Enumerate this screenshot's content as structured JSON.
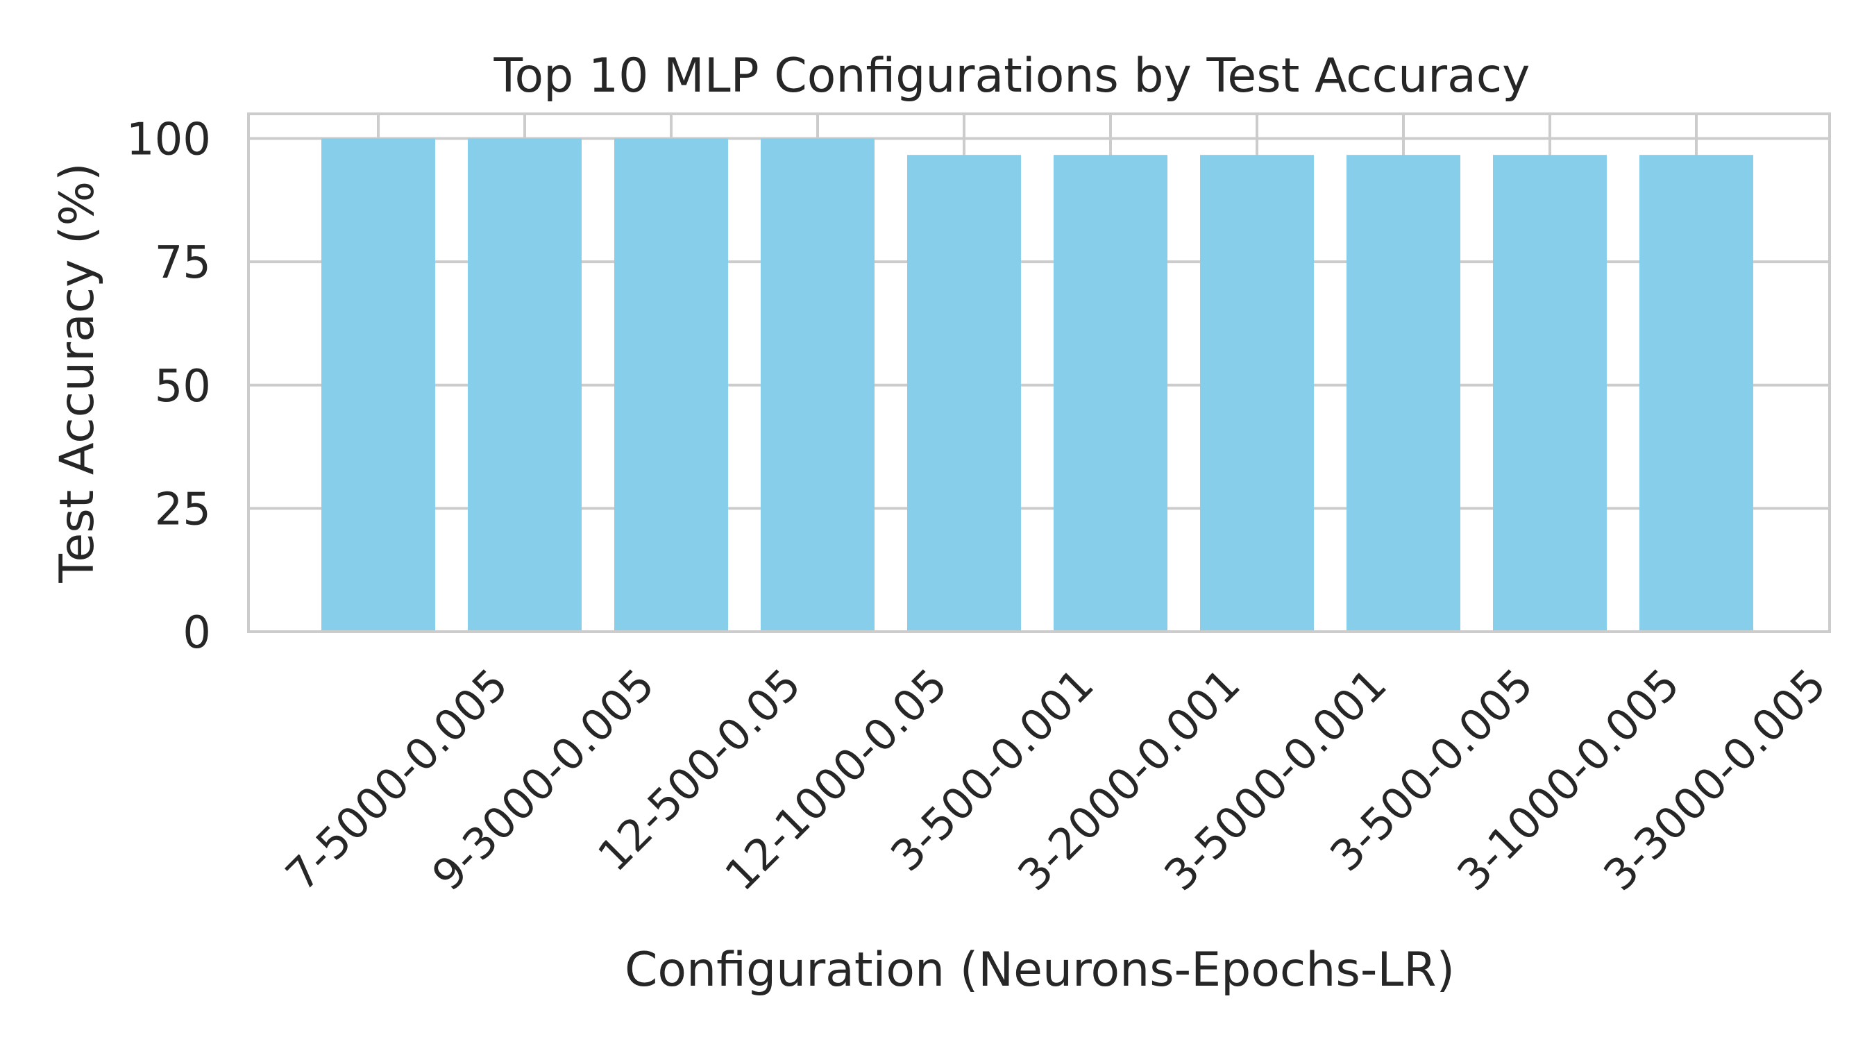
{
  "chart_data": {
    "type": "bar",
    "title": "Top 10 MLP Configurations by Test Accuracy",
    "xlabel": "Configuration (Neurons-Epochs-LR)",
    "ylabel": "Test Accuracy (%)",
    "categories": [
      "7-5000-0.005",
      "9-3000-0.005",
      "12-500-0.05",
      "12-1000-0.05",
      "3-500-0.001",
      "3-2000-0.001",
      "3-5000-0.001",
      "3-500-0.005",
      "3-1000-0.005",
      "3-3000-0.005"
    ],
    "values": [
      100,
      100,
      100,
      100,
      96.67,
      96.67,
      96.67,
      96.67,
      96.67,
      96.67
    ],
    "ylim": [
      0,
      105
    ],
    "yticks": [
      "0",
      "25",
      "50",
      "75",
      "100"
    ],
    "grid": true,
    "legend": "none",
    "bar_color": "#87ceeb",
    "grid_color": "#cccccc",
    "spine_color": "#cccccc",
    "text_color": "#262626"
  }
}
